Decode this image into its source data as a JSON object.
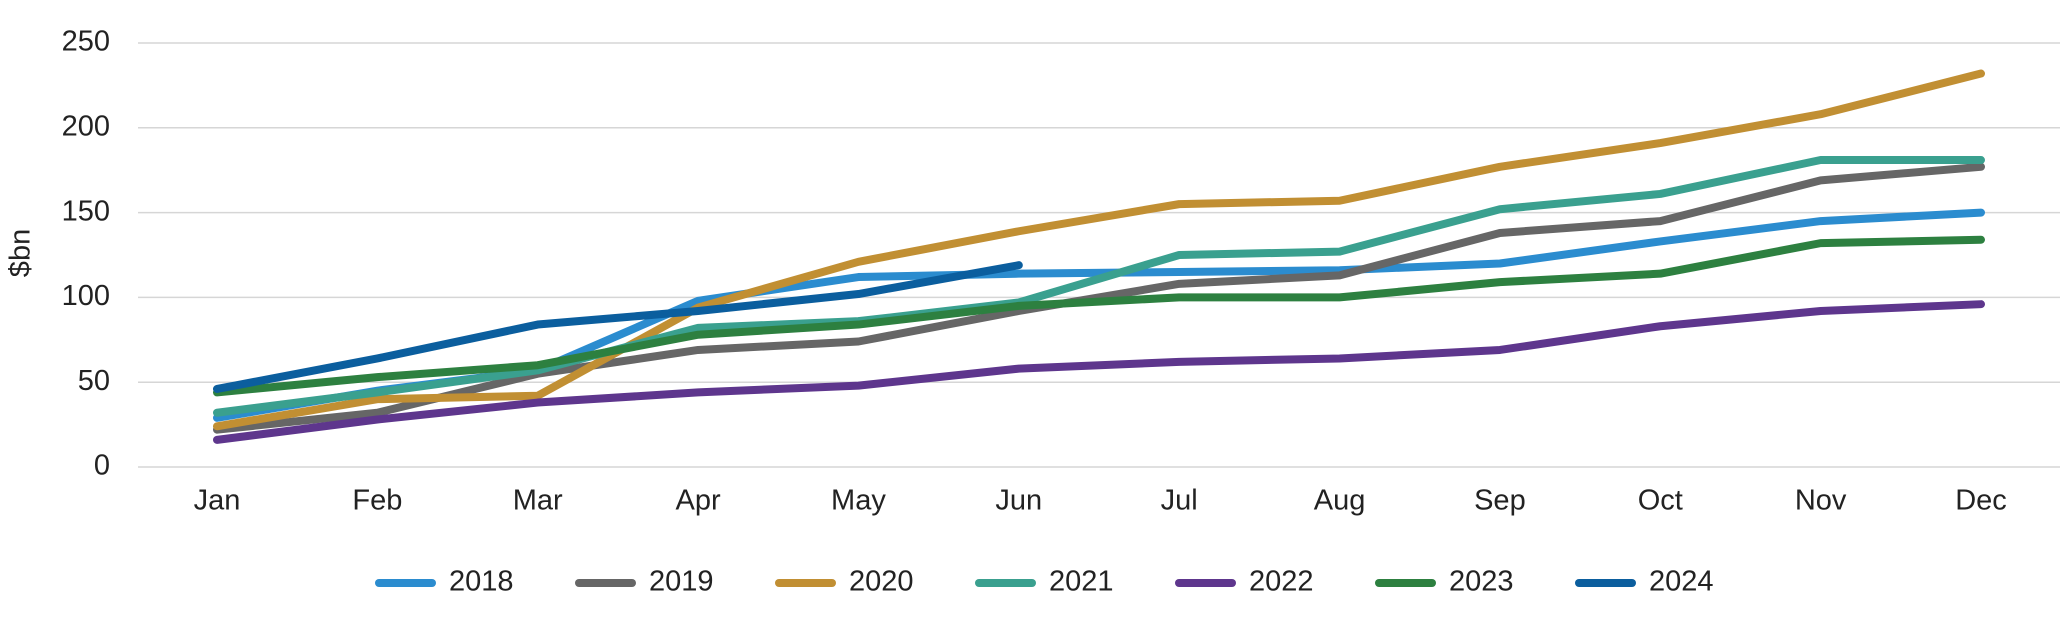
{
  "chart_data": {
    "type": "line",
    "ylabel": "$bn",
    "categories": [
      "Jan",
      "Feb",
      "Mar",
      "Apr",
      "May",
      "Jun",
      "Jul",
      "Aug",
      "Sep",
      "Oct",
      "Nov",
      "Dec"
    ],
    "ylim": [
      0,
      250
    ],
    "yticks": [
      0,
      50,
      100,
      150,
      200,
      250
    ],
    "grid": true,
    "legend": "bottom",
    "series": [
      {
        "name": "2018",
        "color": "#2b8ccf",
        "values": [
          29,
          45,
          57,
          98,
          112,
          114,
          115,
          116,
          120,
          133,
          145,
          150
        ]
      },
      {
        "name": "2019",
        "color": "#666666",
        "values": [
          22,
          32,
          55,
          69,
          74,
          92,
          108,
          113,
          138,
          145,
          169,
          177
        ]
      },
      {
        "name": "2020",
        "color": "#c18f33",
        "values": [
          24,
          40,
          42,
          94,
          121,
          139,
          155,
          157,
          177,
          191,
          208,
          232
        ]
      },
      {
        "name": "2021",
        "color": "#3aa08f",
        "values": [
          32,
          44,
          57,
          82,
          86,
          97,
          125,
          127,
          152,
          161,
          181,
          181
        ]
      },
      {
        "name": "2022",
        "color": "#5e368d",
        "values": [
          16,
          28,
          38,
          44,
          48,
          58,
          62,
          64,
          69,
          83,
          92,
          96
        ]
      },
      {
        "name": "2023",
        "color": "#2d8040",
        "values": [
          44,
          53,
          60,
          78,
          84,
          95,
          100,
          100,
          109,
          114,
          132,
          134
        ]
      },
      {
        "name": "2024",
        "color": "#0b5e9e",
        "values": [
          46,
          64,
          84,
          92,
          102,
          119,
          null,
          null,
          null,
          null,
          null,
          null
        ]
      }
    ]
  }
}
